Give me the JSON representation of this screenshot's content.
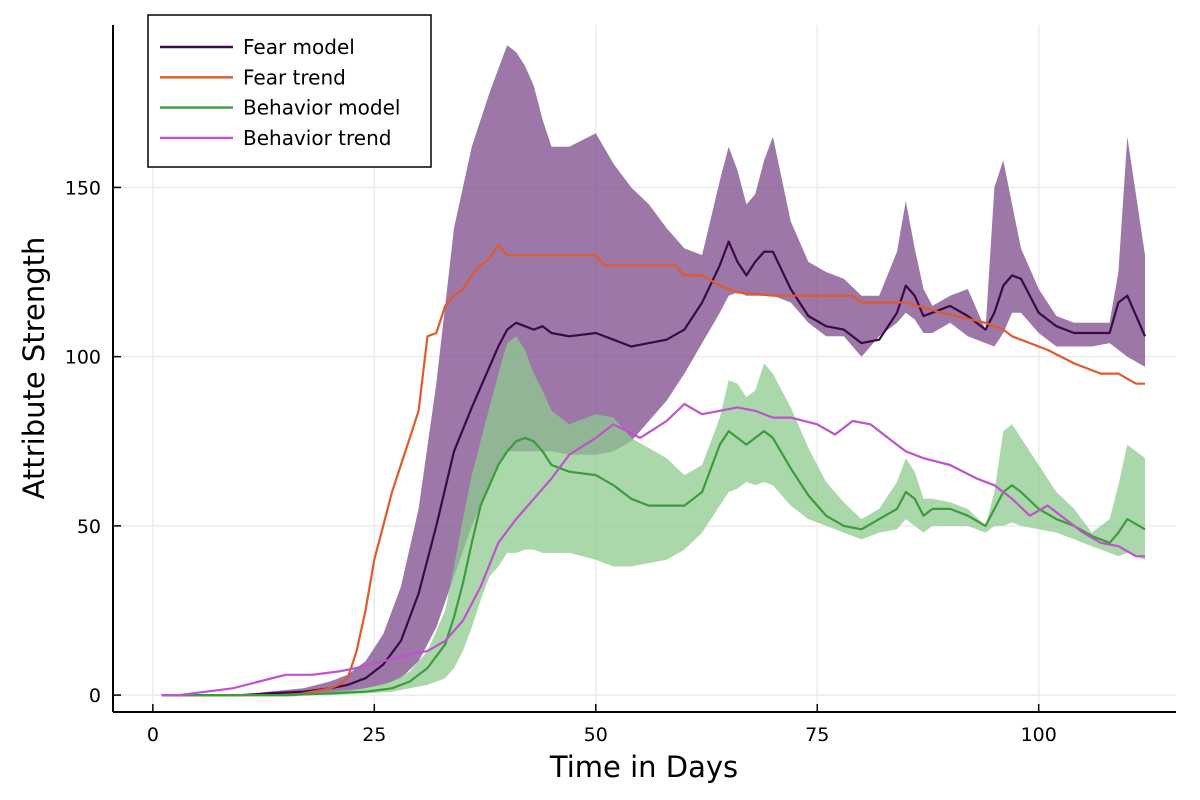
{
  "chart_data": {
    "type": "line",
    "title": "",
    "xlabel": "Time in Days",
    "ylabel": "Attribute Strength",
    "xlim": [
      -4.5,
      115.5
    ],
    "ylim": [
      -5,
      198
    ],
    "xticks": [
      0,
      25,
      50,
      75,
      100
    ],
    "yticks": [
      0,
      50,
      100,
      150
    ],
    "grid": true,
    "legend": "top-left",
    "series": [
      {
        "name": "Fear model",
        "color": "#3b0a45",
        "band_color": "#7b4a8b",
        "x": [
          1,
          4,
          7,
          10,
          13,
          17,
          20,
          22,
          24,
          26,
          28,
          30,
          32,
          34,
          36,
          38,
          39,
          40,
          41,
          42,
          43,
          44,
          45,
          47,
          50,
          52,
          54,
          56,
          58,
          60,
          62,
          64,
          65,
          66,
          67,
          68,
          69,
          70,
          72,
          74,
          76,
          78,
          80,
          82,
          84,
          85,
          86,
          87,
          88,
          90,
          92,
          94,
          95,
          96,
          97,
          98,
          100,
          102,
          104,
          106,
          108,
          109,
          110,
          112
        ],
        "values": [
          0,
          0,
          0,
          0,
          0.5,
          1,
          2,
          3,
          5,
          9,
          16,
          30,
          50,
          72,
          85,
          97,
          103,
          108,
          110,
          109,
          108,
          109,
          107,
          106,
          107,
          105,
          103,
          104,
          105,
          108,
          116,
          127,
          134,
          128,
          124,
          128,
          131,
          131,
          120,
          112,
          109,
          108,
          104,
          105,
          113,
          121,
          118,
          112,
          113,
          115,
          112,
          108,
          113,
          121,
          124,
          123,
          113,
          109,
          107,
          107,
          107,
          116,
          118,
          106
        ],
        "lower": [
          0,
          0,
          0,
          0,
          0,
          0,
          0.5,
          1,
          2,
          3,
          5,
          10,
          20,
          35,
          50,
          62,
          68,
          72,
          72,
          72,
          72,
          72,
          72,
          71,
          71,
          72,
          75,
          81,
          87,
          95,
          104,
          113,
          118,
          119,
          118,
          118,
          118,
          118,
          116,
          110,
          106,
          106,
          100,
          106,
          110,
          113,
          111,
          107,
          107,
          110,
          106,
          104,
          103,
          107,
          113,
          113,
          107,
          103,
          103,
          103,
          104,
          102,
          100,
          97
        ],
        "upper": [
          0,
          0,
          0,
          0,
          1,
          2,
          4,
          6,
          10,
          18,
          32,
          55,
          92,
          138,
          162,
          178,
          185,
          192,
          190,
          186,
          180,
          170,
          162,
          162,
          166,
          157,
          150,
          145,
          138,
          132,
          130,
          152,
          162,
          155,
          145,
          148,
          158,
          165,
          140,
          128,
          125,
          123,
          118,
          118,
          131,
          146,
          132,
          120,
          115,
          118,
          120,
          108,
          150,
          158,
          145,
          132,
          120,
          112,
          110,
          110,
          110,
          125,
          165,
          130
        ]
      },
      {
        "name": "Fear trend",
        "color": "#e05a2b",
        "x": [
          1,
          16,
          18,
          20,
          21,
          22,
          23,
          24,
          25,
          26,
          27,
          28,
          29,
          30,
          31,
          32,
          33,
          34,
          35,
          36,
          37,
          38,
          39,
          40,
          50,
          51,
          55,
          59,
          60,
          62,
          64,
          66,
          70,
          79,
          80,
          85,
          89,
          94,
          96,
          97,
          101,
          104,
          107,
          108,
          109,
          111,
          112
        ],
        "values": [
          0,
          0,
          1,
          2,
          3,
          5,
          13,
          25,
          40,
          50,
          60,
          68,
          76,
          84,
          106,
          107,
          115,
          118,
          120,
          124,
          127,
          129,
          133,
          130,
          130,
          127,
          127,
          127,
          124,
          124,
          121,
          119,
          118,
          118,
          116,
          116,
          113,
          110,
          108,
          106,
          102,
          98,
          95,
          95,
          95,
          92,
          92
        ]
      },
      {
        "name": "Behavior model",
        "color": "#3a9c3a",
        "band_color": "#8fcb8f",
        "x": [
          1,
          5,
          10,
          15,
          20,
          24,
          27,
          29,
          31,
          33,
          34,
          35,
          36,
          37,
          38,
          39,
          40,
          41,
          42,
          43,
          44,
          45,
          47,
          50,
          52,
          54,
          56,
          58,
          60,
          62,
          64,
          65,
          66,
          67,
          68,
          69,
          70,
          72,
          74,
          76,
          78,
          80,
          82,
          84,
          85,
          86,
          87,
          88,
          90,
          92,
          94,
          95,
          96,
          97,
          98,
          100,
          102,
          104,
          106,
          108,
          109,
          110,
          112
        ],
        "values": [
          0,
          0,
          0,
          0,
          0.5,
          1,
          2,
          4,
          8,
          15,
          23,
          33,
          45,
          56,
          62,
          68,
          72,
          75,
          76,
          75,
          72,
          68,
          66,
          65,
          62,
          58,
          56,
          56,
          56,
          60,
          74,
          78,
          76,
          74,
          76,
          78,
          76,
          67,
          59,
          53,
          50,
          49,
          52,
          55,
          60,
          58,
          53,
          55,
          55,
          53,
          50,
          55,
          60,
          62,
          60,
          55,
          52,
          50,
          47,
          45,
          48,
          52,
          49
        ],
        "lower": [
          0,
          0,
          0,
          0,
          0,
          0.5,
          1,
          2,
          3,
          5,
          8,
          13,
          20,
          28,
          35,
          38,
          42,
          42,
          43,
          43,
          42,
          42,
          42,
          40,
          38,
          38,
          39,
          40,
          43,
          48,
          56,
          60,
          61,
          63,
          62,
          63,
          62,
          56,
          52,
          50,
          48,
          46,
          48,
          49,
          52,
          50,
          48,
          50,
          50,
          50,
          48,
          50,
          50,
          51,
          50,
          49,
          48,
          46,
          44,
          42,
          41,
          42,
          40
        ],
        "upper": [
          0,
          0,
          0,
          0,
          1,
          2,
          4,
          7,
          13,
          25,
          38,
          52,
          65,
          75,
          85,
          95,
          104,
          106,
          102,
          95,
          90,
          84,
          80,
          83,
          82,
          76,
          73,
          70,
          65,
          68,
          82,
          93,
          92,
          88,
          90,
          98,
          95,
          85,
          73,
          63,
          57,
          52,
          55,
          63,
          70,
          66,
          58,
          58,
          57,
          55,
          50,
          60,
          78,
          80,
          76,
          68,
          60,
          55,
          48,
          52,
          62,
          74,
          70
        ]
      },
      {
        "name": "Behavior trend",
        "color": "#c051cf",
        "x": [
          1,
          3,
          6,
          9,
          12,
          15,
          18,
          21,
          23,
          26,
          29,
          31,
          33,
          35,
          37,
          39,
          41,
          43,
          45,
          47,
          50,
          52,
          55,
          58,
          60,
          62,
          64,
          66,
          68,
          70,
          72,
          75,
          77,
          79,
          81,
          83,
          85,
          87,
          90,
          93,
          95,
          97,
          99,
          101,
          103,
          105,
          107,
          109,
          111,
          112
        ],
        "values": [
          0,
          0,
          1,
          2,
          4,
          6,
          6,
          7,
          8,
          10,
          12,
          13,
          16,
          22,
          32,
          45,
          52,
          58,
          64,
          71,
          76,
          80,
          76,
          81,
          86,
          83,
          84,
          85,
          84,
          82,
          82,
          80,
          77,
          81,
          80,
          76,
          72,
          70,
          68,
          64,
          62,
          58,
          53,
          56,
          52,
          48,
          45,
          44,
          41,
          41
        ]
      }
    ]
  }
}
